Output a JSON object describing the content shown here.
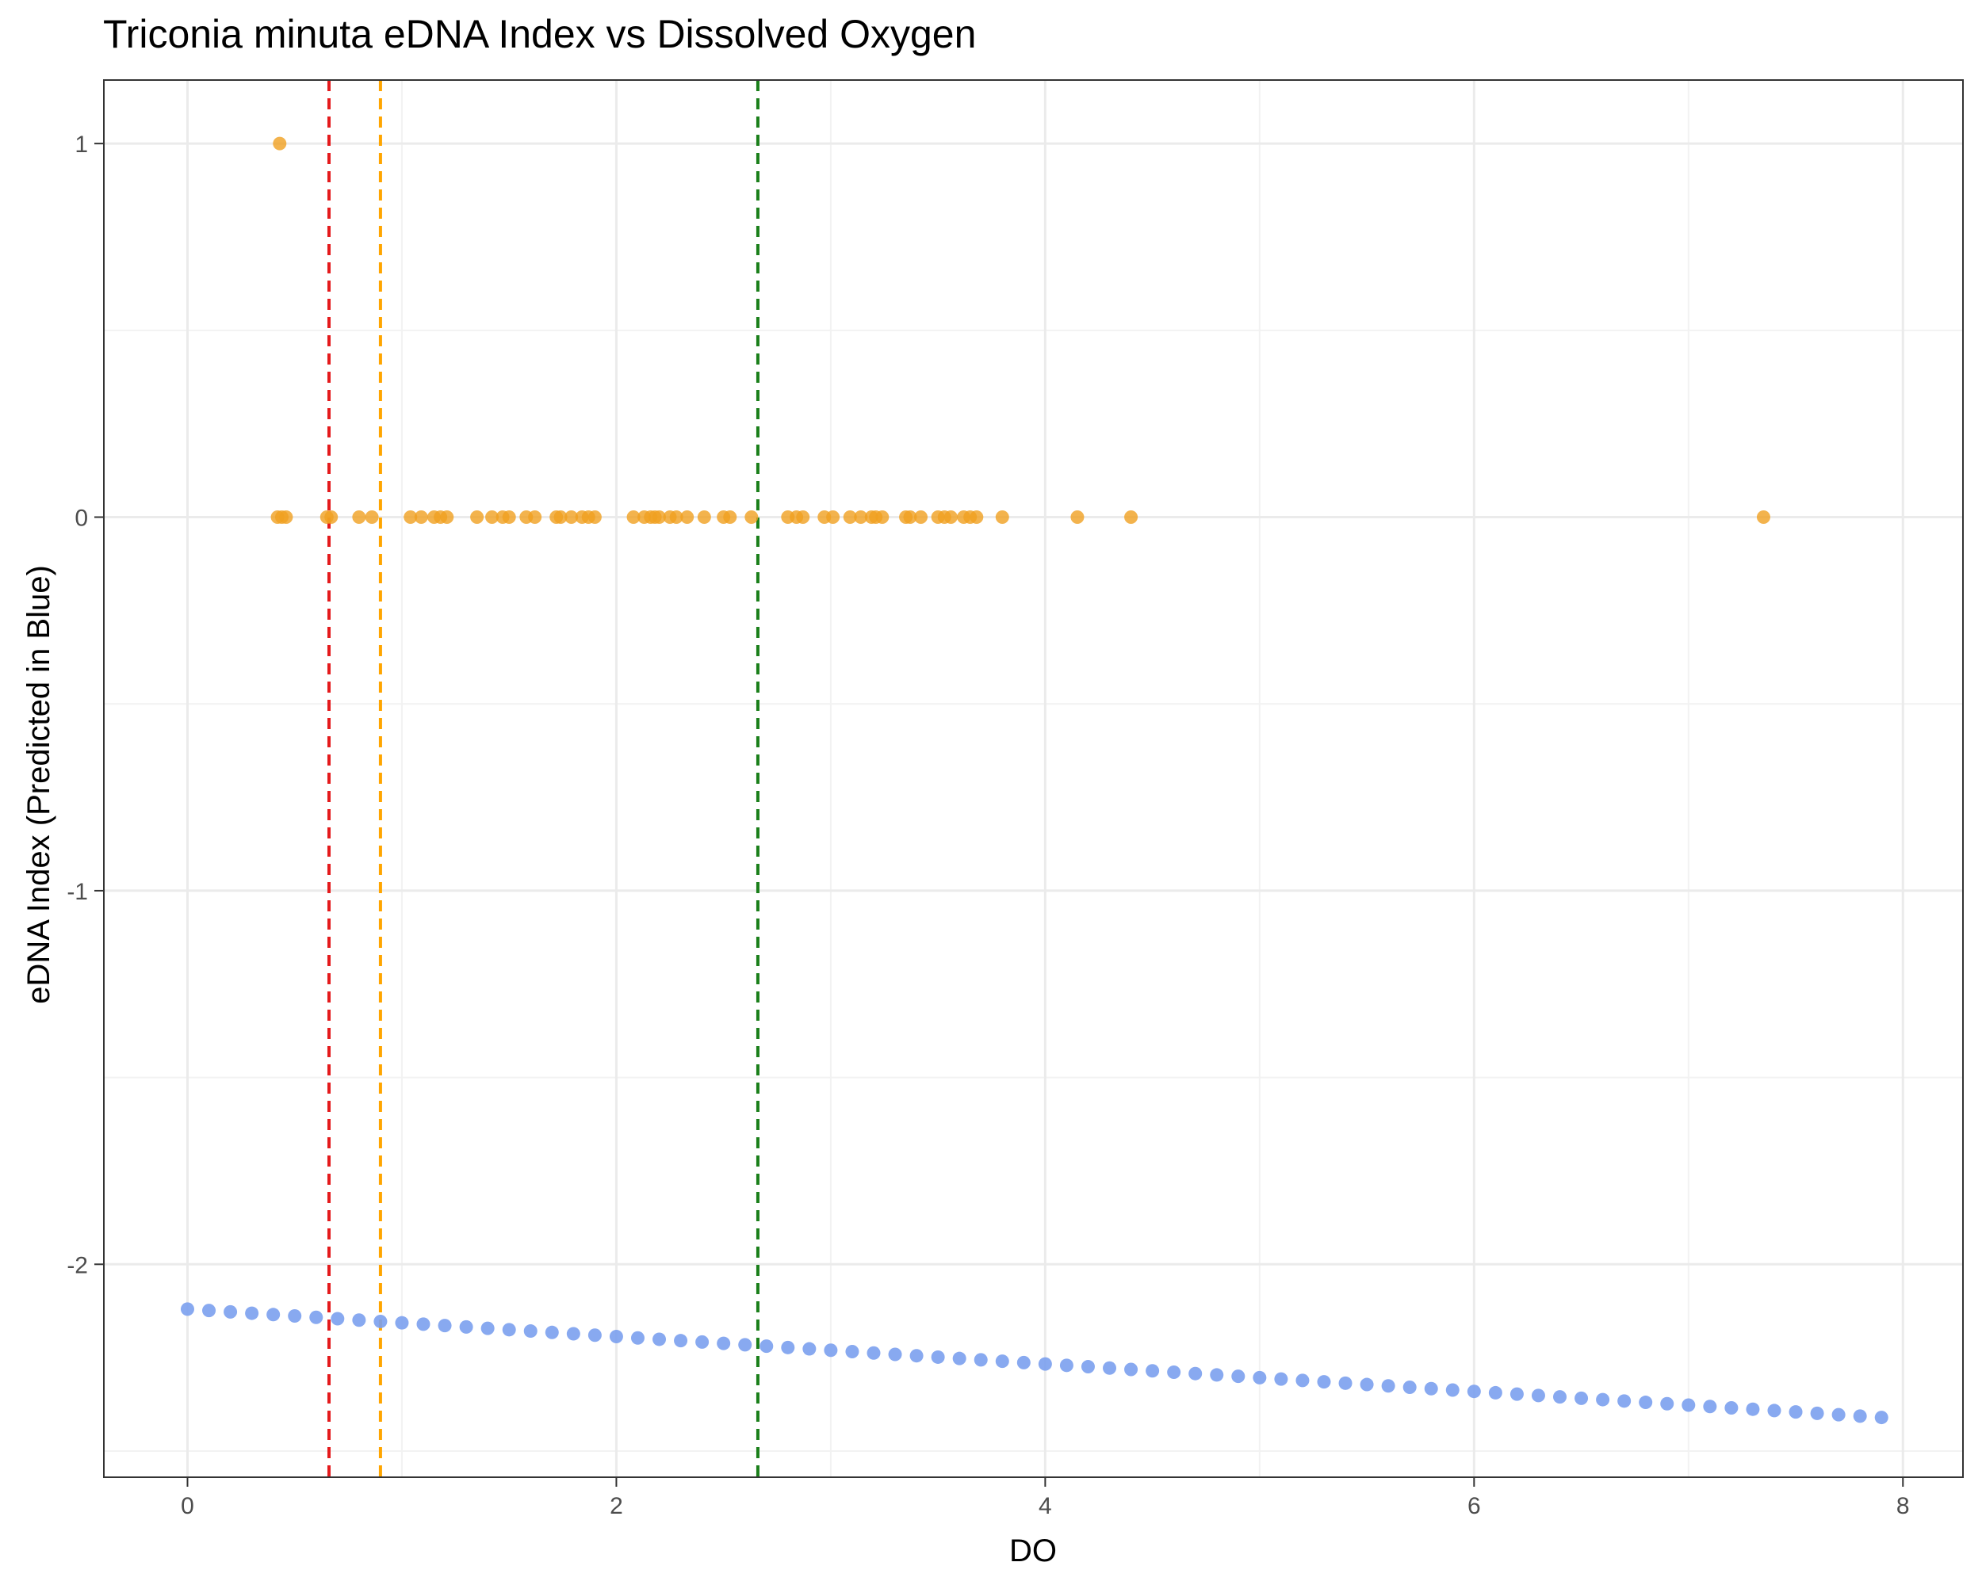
{
  "chart_data": {
    "type": "scatter",
    "title": "Triconia minuta eDNA Index vs Dissolved Oxygen",
    "xlabel": "DO",
    "ylabel": "eDNA Index (Predicted in Blue)",
    "xlim": [
      -0.39,
      8.28
    ],
    "ylim": [
      -2.57,
      1.17
    ],
    "x_ticks": [
      0,
      2,
      4,
      6,
      8
    ],
    "y_ticks": [
      -2,
      -1,
      0,
      1
    ],
    "x_tick_labels": [
      "0",
      "2",
      "4",
      "6",
      "8"
    ],
    "y_tick_labels": [
      "-2",
      "-1",
      "0",
      "1"
    ],
    "grid": true,
    "legend": "none",
    "series": [
      {
        "color": "#F0A020",
        "points": [
          [
            0.43,
            1
          ],
          [
            0.42,
            0
          ],
          [
            0.44,
            0
          ],
          [
            0.46,
            0
          ],
          [
            0.65,
            0
          ],
          [
            0.67,
            0
          ],
          [
            0.8,
            0
          ],
          [
            0.86,
            0
          ],
          [
            1.04,
            0
          ],
          [
            1.09,
            0
          ],
          [
            1.15,
            0
          ],
          [
            1.18,
            0
          ],
          [
            1.21,
            0
          ],
          [
            1.35,
            0
          ],
          [
            1.42,
            0
          ],
          [
            1.47,
            0
          ],
          [
            1.5,
            0
          ],
          [
            1.58,
            0
          ],
          [
            1.62,
            0
          ],
          [
            1.72,
            0
          ],
          [
            1.74,
            0
          ],
          [
            1.79,
            0
          ],
          [
            1.84,
            0
          ],
          [
            1.87,
            0
          ],
          [
            1.9,
            0
          ],
          [
            2.08,
            0
          ],
          [
            2.13,
            0
          ],
          [
            2.16,
            0
          ],
          [
            2.18,
            0
          ],
          [
            2.2,
            0
          ],
          [
            2.25,
            0
          ],
          [
            2.28,
            0
          ],
          [
            2.33,
            0
          ],
          [
            2.41,
            0
          ],
          [
            2.5,
            0
          ],
          [
            2.53,
            0
          ],
          [
            2.63,
            0
          ],
          [
            2.8,
            0
          ],
          [
            2.84,
            0
          ],
          [
            2.87,
            0
          ],
          [
            2.97,
            0
          ],
          [
            3.01,
            0
          ],
          [
            3.09,
            0
          ],
          [
            3.14,
            0
          ],
          [
            3.19,
            0
          ],
          [
            3.21,
            0
          ],
          [
            3.24,
            0
          ],
          [
            3.35,
            0
          ],
          [
            3.37,
            0
          ],
          [
            3.42,
            0
          ],
          [
            3.5,
            0
          ],
          [
            3.53,
            0
          ],
          [
            3.56,
            0
          ],
          [
            3.62,
            0
          ],
          [
            3.65,
            0
          ],
          [
            3.68,
            0
          ],
          [
            3.8,
            0
          ],
          [
            4.15,
            0
          ],
          [
            4.4,
            0
          ],
          [
            7.35,
            0
          ]
        ]
      },
      {
        "color": "#7BA0EE",
        "predicted": {
          "x_start": 0,
          "x_end": 7.9,
          "x_step": 0.1,
          "y_start": -2.12,
          "y_end": -2.41
        }
      }
    ],
    "reference_lines": [
      {
        "x": 0.66,
        "color": "#E41A1C",
        "style": "dashed"
      },
      {
        "x": 0.9,
        "color": "#FFA500",
        "style": "dashed"
      },
      {
        "x": 2.66,
        "color": "#1A7F1A",
        "style": "dashed"
      }
    ]
  }
}
